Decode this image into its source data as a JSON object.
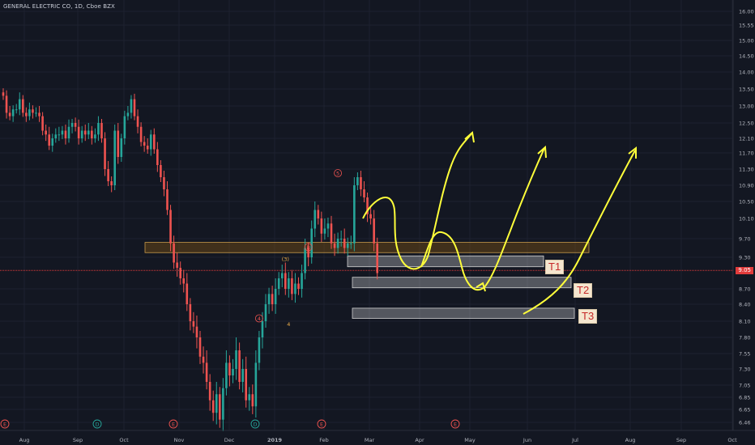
{
  "header": {
    "title": "GENERAL ELECTRIC CO, 1D, Cboe BZX"
  },
  "chart_data": {
    "type": "candlestick",
    "ylim": [
      6.3,
      16.2
    ],
    "y_ticks": [
      16.0,
      15.55,
      15.0,
      14.5,
      14.0,
      13.5,
      13.0,
      12.5,
      12.1,
      11.7,
      11.3,
      10.9,
      10.5,
      10.1,
      9.7,
      9.3,
      8.7,
      8.4,
      8.1,
      7.8,
      7.55,
      7.3,
      7.05,
      6.85,
      6.65,
      6.46
    ],
    "y_tick_labels": [
      "16.00",
      "15.55",
      "15.00",
      "14.50",
      "14.00",
      "13.50",
      "13.00",
      "12.50",
      "12.10",
      "11.70",
      "11.30",
      "10.90",
      "10.50",
      "10.10",
      "9.70",
      "9.30",
      "8.70",
      "8.40",
      "8.10",
      "7.80",
      "7.55",
      "7.30",
      "7.05",
      "6.85",
      "6.65",
      "6.46"
    ],
    "x_labels": [
      "Aug",
      "Sep",
      "Oct",
      "Nov",
      "Dec",
      "2019",
      "Feb",
      "Mar",
      "Apr",
      "May",
      "Jun",
      "Jul",
      "Aug",
      "Sep",
      "Oct"
    ],
    "last_price": "9.05",
    "last_price_value": 9.05,
    "closes": [
      13.3,
      12.8,
      12.7,
      12.9,
      12.9,
      13.2,
      12.8,
      12.7,
      12.9,
      12.8,
      12.8,
      12.7,
      12.3,
      12.2,
      11.9,
      12.1,
      12.2,
      12.2,
      12.3,
      12.1,
      12.4,
      12.5,
      12.4,
      12.1,
      12.3,
      12.2,
      12.3,
      12.1,
      12.2,
      12.5,
      12.1,
      11.3,
      11.0,
      10.9,
      12.3,
      11.6,
      12.1,
      12.7,
      12.8,
      13.2,
      12.7,
      12.4,
      12.0,
      11.9,
      11.8,
      12.2,
      11.8,
      11.4,
      11.1,
      10.8,
      10.3,
      9.6,
      9.2,
      9.1,
      8.9,
      8.8,
      8.4,
      8.1,
      8.0,
      7.8,
      7.5,
      7.4,
      7.1,
      6.8,
      6.6,
      6.9,
      6.5,
      7.0,
      7.4,
      7.2,
      7.3,
      7.6,
      7.1,
      7.3,
      6.8,
      6.9,
      6.7,
      7.4,
      7.8,
      8.1,
      8.4,
      8.6,
      8.4,
      8.7,
      8.9,
      9.0,
      8.7,
      8.9,
      8.6,
      8.8,
      8.7,
      9.0,
      9.5,
      9.3,
      9.9,
      10.3,
      10.1,
      9.8,
      9.9,
      10.0,
      9.6,
      9.5,
      9.7,
      9.7,
      9.5,
      9.6,
      9.6,
      10.9,
      11.1,
      10.8,
      10.6,
      10.2,
      10.1,
      9.6,
      9.0
    ],
    "annotations": [
      {
        "text": "5",
        "x_index": 102,
        "y": 11.2,
        "kind": "circle"
      },
      {
        "text": "(3)",
        "x_index": 86,
        "y": 9.27,
        "kind": "text"
      },
      {
        "text": "B",
        "x_index": 93,
        "y": 9.52,
        "kind": "circle"
      },
      {
        "text": "4",
        "x_index": 78,
        "y": 8.15,
        "kind": "circle"
      },
      {
        "text": "4",
        "x_index": 87,
        "y": 8.05,
        "kind": "text"
      }
    ],
    "events": [
      {
        "text": "E",
        "x_index": 1
      },
      {
        "text": "D",
        "x_index": 30
      },
      {
        "text": "E",
        "x_index": 54
      },
      {
        "text": "D",
        "x_index": 79
      },
      {
        "text": "E",
        "x_index": 99
      },
      {
        "text": "E",
        "x_index": 141
      }
    ],
    "zones": [
      {
        "name": "resistance-zone",
        "y_low": 9.4,
        "y_high": 9.62,
        "x_start": 45,
        "x_end": 183
      },
      {
        "name": "target-zone-1",
        "y_low": 9.12,
        "y_high": 9.33,
        "x_start": 108,
        "x_end": 169,
        "label": "T1"
      },
      {
        "name": "target-zone-2",
        "y_low": 8.72,
        "y_high": 8.92,
        "x_start": 110,
        "x_end": 178,
        "label": "T2"
      },
      {
        "name": "target-zone-3",
        "y_low": 8.15,
        "y_high": 8.33,
        "x_start": 110,
        "x_end": 178,
        "label": "T3"
      }
    ]
  }
}
